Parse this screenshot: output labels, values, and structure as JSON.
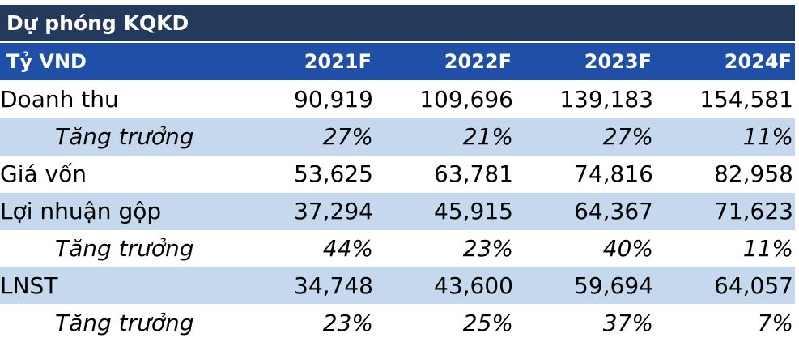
{
  "title": "Dự phóng KQKD",
  "header": {
    "unit": "Tỷ VND",
    "years": [
      "2021F",
      "2022F",
      "2023F",
      "2024F"
    ]
  },
  "rows": [
    {
      "label": "Doanh thu",
      "values": [
        "90,919",
        "109,696",
        "139,183",
        "154,581"
      ]
    },
    {
      "label": "Tăng trưởng",
      "values": [
        "27%",
        "21%",
        "27%",
        "11%"
      ]
    },
    {
      "label": "Giá vốn",
      "values": [
        "53,625",
        "63,781",
        "74,816",
        "82,958"
      ]
    },
    {
      "label": "Lợi nhuận gộp",
      "values": [
        "37,294",
        "45,915",
        "64,367",
        "71,623"
      ]
    },
    {
      "label": "Tăng trưởng",
      "values": [
        "44%",
        "23%",
        "40%",
        "11%"
      ]
    },
    {
      "label": "LNST",
      "values": [
        "34,748",
        "43,600",
        "59,694",
        "64,057"
      ]
    },
    {
      "label": "Tăng trưởng",
      "values": [
        "23%",
        "25%",
        "37%",
        "7%"
      ]
    }
  ],
  "colors": {
    "title_bg": "#243a5c",
    "header_bg": "#1f4fa6",
    "shade_bg": "#c5d8ee"
  }
}
